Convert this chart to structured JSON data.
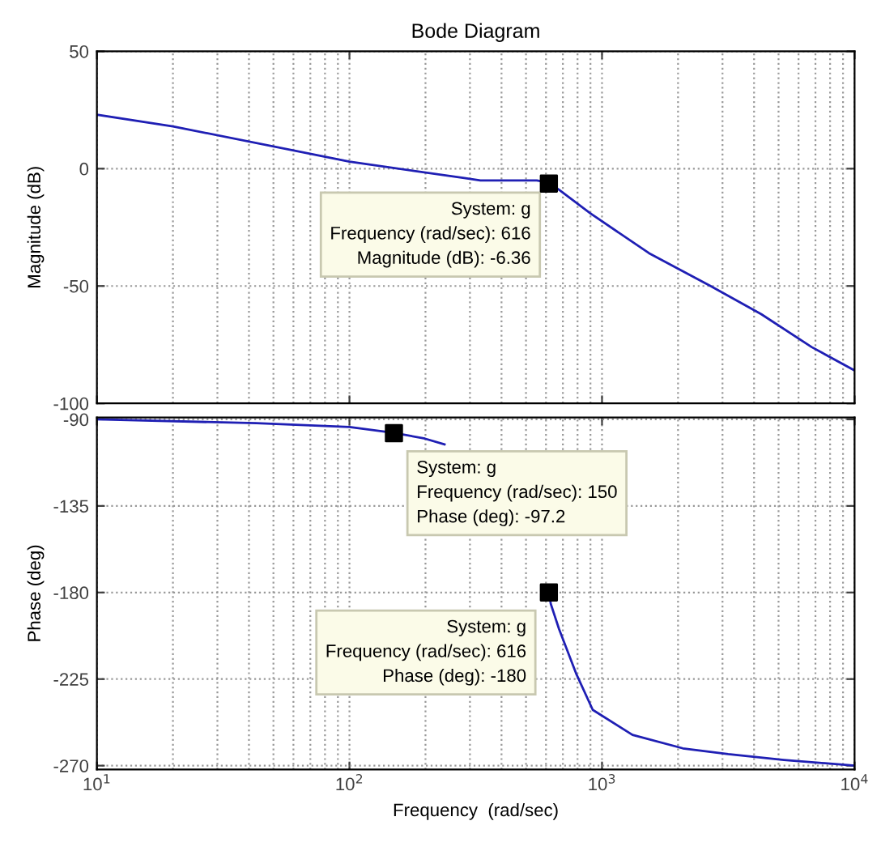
{
  "chart_data": [
    {
      "type": "line",
      "title": "Bode Diagram",
      "ylabel": "Magnitude (dB)",
      "log": "x",
      "grid": true,
      "tick_labels": "y",
      "line_style": "solid",
      "xlim": [
        10,
        10000
      ],
      "xticks": [
        10,
        100,
        1000,
        10000
      ],
      "ylim": [
        -100,
        50
      ],
      "yticks": [
        -100,
        -50,
        0,
        50
      ],
      "series": [
        {
          "color": "#1f1fb4",
          "x": [
            10,
            20,
            100,
            285,
            330,
            552,
            616,
            676,
            898,
            1535,
            2690,
            4270,
            6760,
            10000
          ],
          "values": [
            23,
            18,
            3,
            -4,
            -5,
            -5,
            -6,
            -9,
            -19,
            -36,
            -50,
            -62,
            -76,
            -86
          ]
        },
        {
          "type": "scatter",
          "marker": "square",
          "color": "#000000",
          "x": [
            616
          ],
          "values": [
            -6.36
          ]
        }
      ],
      "annotations": [
        "System: g\nFrequency (rad/sec): 616\nMagnitude (dB): -6.36"
      ]
    },
    {
      "type": "line",
      "xlabel": "Frequency  (rad/sec)",
      "ylabel": "Phase (deg)",
      "log": "x",
      "grid": true,
      "line_style": "solid",
      "xlim": [
        10,
        10000
      ],
      "xticks": [
        {
          "value": 10,
          "label": "10$^{1}$"
        },
        {
          "value": 100,
          "label": "10$^{2}$"
        },
        {
          "value": 1000,
          "label": "10$^{3}$"
        },
        {
          "value": 10000,
          "label": "10$^{4}$"
        }
      ],
      "ylim": [
        -272,
        -89
      ],
      "yticks": [
        -270,
        -225,
        -180,
        -135,
        -90
      ],
      "series": [
        {
          "color": "#1f1fb4",
          "x": [
            10,
            42.8,
            100,
            150,
            199,
            238,
            400,
            616,
            627,
            676,
            789,
            919,
            1320,
            2090,
            3160,
            5250,
            10000
          ],
          "values": [
            -90,
            -92,
            -94,
            -97,
            -100,
            -103,
            null,
            -180,
            -186,
            -199,
            -222,
            -241,
            -254,
            -261,
            -264,
            -267,
            -270
          ]
        },
        {
          "type": "scatter",
          "marker": "square",
          "color": "#000000",
          "x": [
            150,
            616
          ],
          "values": [
            -97.2,
            -180
          ]
        }
      ],
      "annotations": [
        "System: g\nFrequency (rad/sec): 150\nPhase (deg): -97.2",
        "System: g\nFrequency (rad/sec): 616\nPhase (deg): -180"
      ]
    }
  ]
}
